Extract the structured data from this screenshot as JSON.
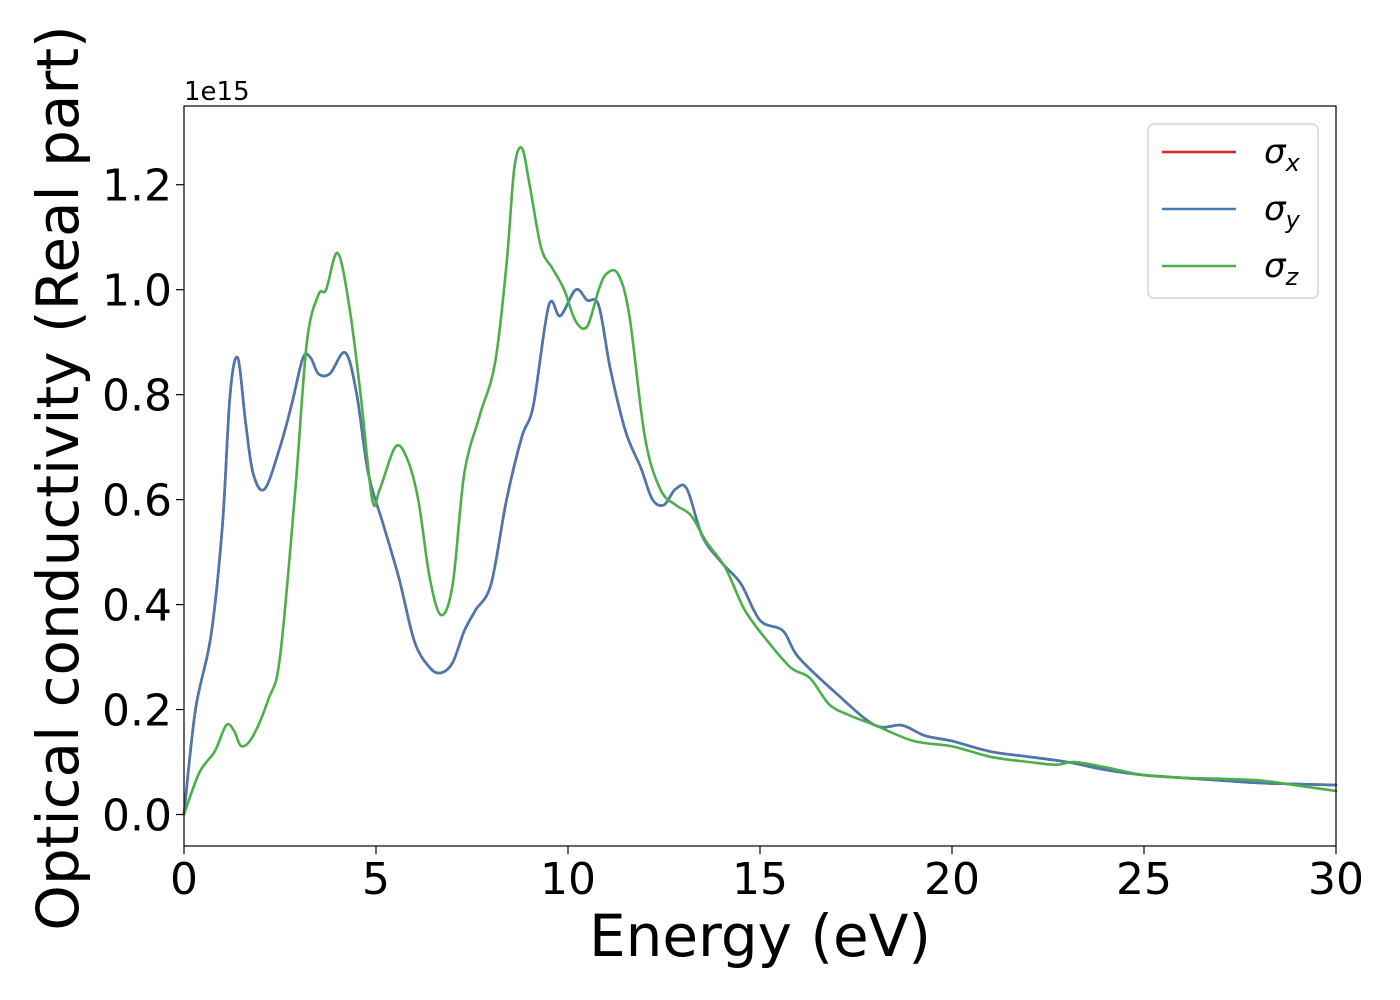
{
  "chart_data": {
    "type": "line",
    "xlabel": "Energy (eV)",
    "ylabel": "Optical conductivity (Real part)",
    "offset_text": "1e15",
    "xlim": [
      0,
      30
    ],
    "ylim": [
      -0.06,
      1.35
    ],
    "y_scale_label": "1e15",
    "xticks": [
      0,
      5,
      10,
      15,
      20,
      25,
      30
    ],
    "xtick_labels": [
      "0",
      "5",
      "10",
      "15",
      "20",
      "25",
      "30"
    ],
    "yticks": [
      0.0,
      0.2,
      0.4,
      0.6,
      0.8,
      1.0,
      1.2
    ],
    "ytick_labels": [
      "0.0",
      "0.2",
      "0.4",
      "0.6",
      "0.8",
      "1.0",
      "1.2"
    ],
    "grid": false,
    "legend_position": "top-right",
    "series": [
      {
        "name": "σx",
        "legend_base": "σ",
        "legend_sub": "x",
        "color": "#d62728",
        "x": [
          0,
          0.3,
          0.7,
          1.0,
          1.2,
          1.4,
          1.6,
          1.8,
          2.1,
          2.5,
          2.8,
          3.1,
          3.3,
          3.5,
          3.8,
          4.2,
          4.5,
          4.8,
          5.2,
          5.6,
          6.0,
          6.4,
          6.7,
          7.0,
          7.3,
          7.6,
          8.0,
          8.4,
          8.8,
          9.1,
          9.5,
          9.8,
          10.2,
          10.5,
          10.8,
          11.1,
          11.5,
          11.9,
          12.2,
          12.5,
          12.8,
          13.1,
          13.5,
          14.0,
          14.5,
          15.0,
          15.6,
          16.0,
          17.0,
          18.0,
          18.7,
          19.3,
          20.0,
          21.0,
          22.0,
          23.0,
          24.0,
          25.0,
          26.0,
          27.0,
          28.0,
          29.0,
          30.0
        ],
        "y": [
          0.0,
          0.2,
          0.34,
          0.55,
          0.8,
          0.87,
          0.75,
          0.65,
          0.62,
          0.7,
          0.78,
          0.87,
          0.87,
          0.84,
          0.84,
          0.88,
          0.8,
          0.65,
          0.55,
          0.45,
          0.33,
          0.28,
          0.27,
          0.29,
          0.35,
          0.39,
          0.44,
          0.6,
          0.72,
          0.78,
          0.97,
          0.95,
          1.0,
          0.98,
          0.97,
          0.85,
          0.73,
          0.66,
          0.6,
          0.59,
          0.62,
          0.62,
          0.53,
          0.48,
          0.44,
          0.37,
          0.35,
          0.3,
          0.23,
          0.17,
          0.17,
          0.15,
          0.14,
          0.12,
          0.11,
          0.1,
          0.085,
          0.075,
          0.07,
          0.065,
          0.06,
          0.058,
          0.056
        ]
      },
      {
        "name": "σy",
        "legend_base": "σ",
        "legend_sub": "y",
        "color": "#4a78b0",
        "x": [
          0,
          0.3,
          0.7,
          1.0,
          1.2,
          1.4,
          1.6,
          1.8,
          2.1,
          2.5,
          2.8,
          3.1,
          3.3,
          3.5,
          3.8,
          4.2,
          4.5,
          4.8,
          5.2,
          5.6,
          6.0,
          6.4,
          6.7,
          7.0,
          7.3,
          7.6,
          8.0,
          8.4,
          8.8,
          9.1,
          9.5,
          9.8,
          10.2,
          10.5,
          10.8,
          11.1,
          11.5,
          11.9,
          12.2,
          12.5,
          12.8,
          13.1,
          13.5,
          14.0,
          14.5,
          15.0,
          15.6,
          16.0,
          17.0,
          18.0,
          18.7,
          19.3,
          20.0,
          21.0,
          22.0,
          23.0,
          24.0,
          25.0,
          26.0,
          27.0,
          28.0,
          29.0,
          30.0
        ],
        "y": [
          0.0,
          0.2,
          0.34,
          0.55,
          0.8,
          0.87,
          0.75,
          0.65,
          0.62,
          0.7,
          0.78,
          0.87,
          0.87,
          0.84,
          0.84,
          0.88,
          0.8,
          0.65,
          0.55,
          0.45,
          0.33,
          0.28,
          0.27,
          0.29,
          0.35,
          0.39,
          0.44,
          0.6,
          0.72,
          0.78,
          0.97,
          0.95,
          1.0,
          0.98,
          0.97,
          0.85,
          0.73,
          0.66,
          0.6,
          0.59,
          0.62,
          0.62,
          0.53,
          0.48,
          0.44,
          0.37,
          0.35,
          0.3,
          0.23,
          0.17,
          0.17,
          0.15,
          0.14,
          0.12,
          0.11,
          0.1,
          0.085,
          0.075,
          0.07,
          0.065,
          0.06,
          0.058,
          0.056
        ]
      },
      {
        "name": "σz",
        "legend_base": "σ",
        "legend_sub": "z",
        "color": "#4daf4a",
        "x": [
          0,
          0.4,
          0.8,
          1.1,
          1.3,
          1.5,
          1.8,
          2.2,
          2.5,
          2.9,
          3.2,
          3.5,
          3.7,
          4.0,
          4.3,
          4.6,
          4.9,
          5.1,
          5.5,
          5.8,
          6.1,
          6.4,
          6.7,
          7.0,
          7.3,
          7.7,
          8.1,
          8.4,
          8.6,
          8.8,
          9.0,
          9.3,
          9.6,
          9.9,
          10.2,
          10.5,
          10.8,
          11.0,
          11.3,
          11.6,
          12.0,
          12.4,
          12.8,
          13.2,
          13.6,
          14.1,
          14.6,
          15.2,
          15.8,
          16.3,
          16.8,
          17.3,
          18.0,
          19.0,
          20.0,
          21.0,
          22.0,
          22.7,
          23.2,
          24.0,
          25.0,
          26.0,
          27.0,
          28.0,
          29.0,
          30.0
        ],
        "y": [
          0.0,
          0.08,
          0.12,
          0.17,
          0.16,
          0.13,
          0.15,
          0.22,
          0.3,
          0.62,
          0.9,
          0.99,
          1.0,
          1.07,
          0.97,
          0.8,
          0.6,
          0.62,
          0.7,
          0.68,
          0.6,
          0.45,
          0.38,
          0.44,
          0.65,
          0.76,
          0.86,
          1.05,
          1.23,
          1.27,
          1.2,
          1.08,
          1.04,
          1.0,
          0.94,
          0.93,
          1.0,
          1.03,
          1.03,
          0.95,
          0.72,
          0.62,
          0.59,
          0.57,
          0.52,
          0.47,
          0.39,
          0.33,
          0.28,
          0.26,
          0.21,
          0.19,
          0.17,
          0.14,
          0.13,
          0.11,
          0.1,
          0.095,
          0.1,
          0.09,
          0.075,
          0.07,
          0.068,
          0.065,
          0.055,
          0.045
        ]
      }
    ]
  }
}
